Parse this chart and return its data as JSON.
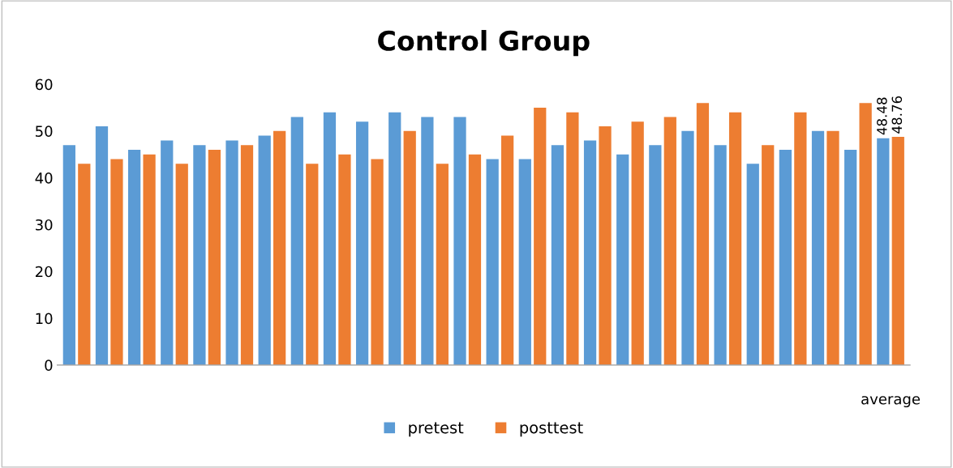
{
  "chart_data": {
    "type": "bar",
    "title": "Control Group",
    "categories": [
      null,
      null,
      null,
      null,
      null,
      null,
      null,
      null,
      null,
      null,
      null,
      null,
      null,
      null,
      null,
      null,
      null,
      null,
      null,
      null,
      null,
      null,
      null,
      null,
      null,
      "average"
    ],
    "series": [
      {
        "name": "pretest",
        "color": "#5b9bd5",
        "values": [
          47,
          51,
          46,
          48,
          47,
          48,
          49,
          53,
          54,
          52,
          54,
          53,
          53,
          44,
          44,
          47,
          48,
          45,
          47,
          50,
          47,
          43,
          46,
          50,
          46,
          48.48
        ],
        "value_labels": [
          null,
          null,
          null,
          null,
          null,
          null,
          null,
          null,
          null,
          null,
          null,
          null,
          null,
          null,
          null,
          null,
          null,
          null,
          null,
          null,
          null,
          null,
          null,
          null,
          null,
          "48.48"
        ]
      },
      {
        "name": "posttest",
        "color": "#ed7d31",
        "values": [
          43,
          44,
          45,
          43,
          46,
          47,
          50,
          43,
          45,
          44,
          50,
          43,
          45,
          49,
          55,
          54,
          51,
          52,
          53,
          56,
          54,
          47,
          54,
          50,
          56,
          48.76
        ],
        "value_labels": [
          null,
          null,
          null,
          null,
          null,
          null,
          null,
          null,
          null,
          null,
          null,
          null,
          null,
          null,
          null,
          null,
          null,
          null,
          null,
          null,
          null,
          null,
          null,
          null,
          null,
          "48.76"
        ]
      }
    ],
    "ylim": [
      0,
      60
    ],
    "yticks": [
      0,
      10,
      20,
      30,
      40,
      50,
      60
    ],
    "grid": false,
    "legend": "bottom"
  }
}
